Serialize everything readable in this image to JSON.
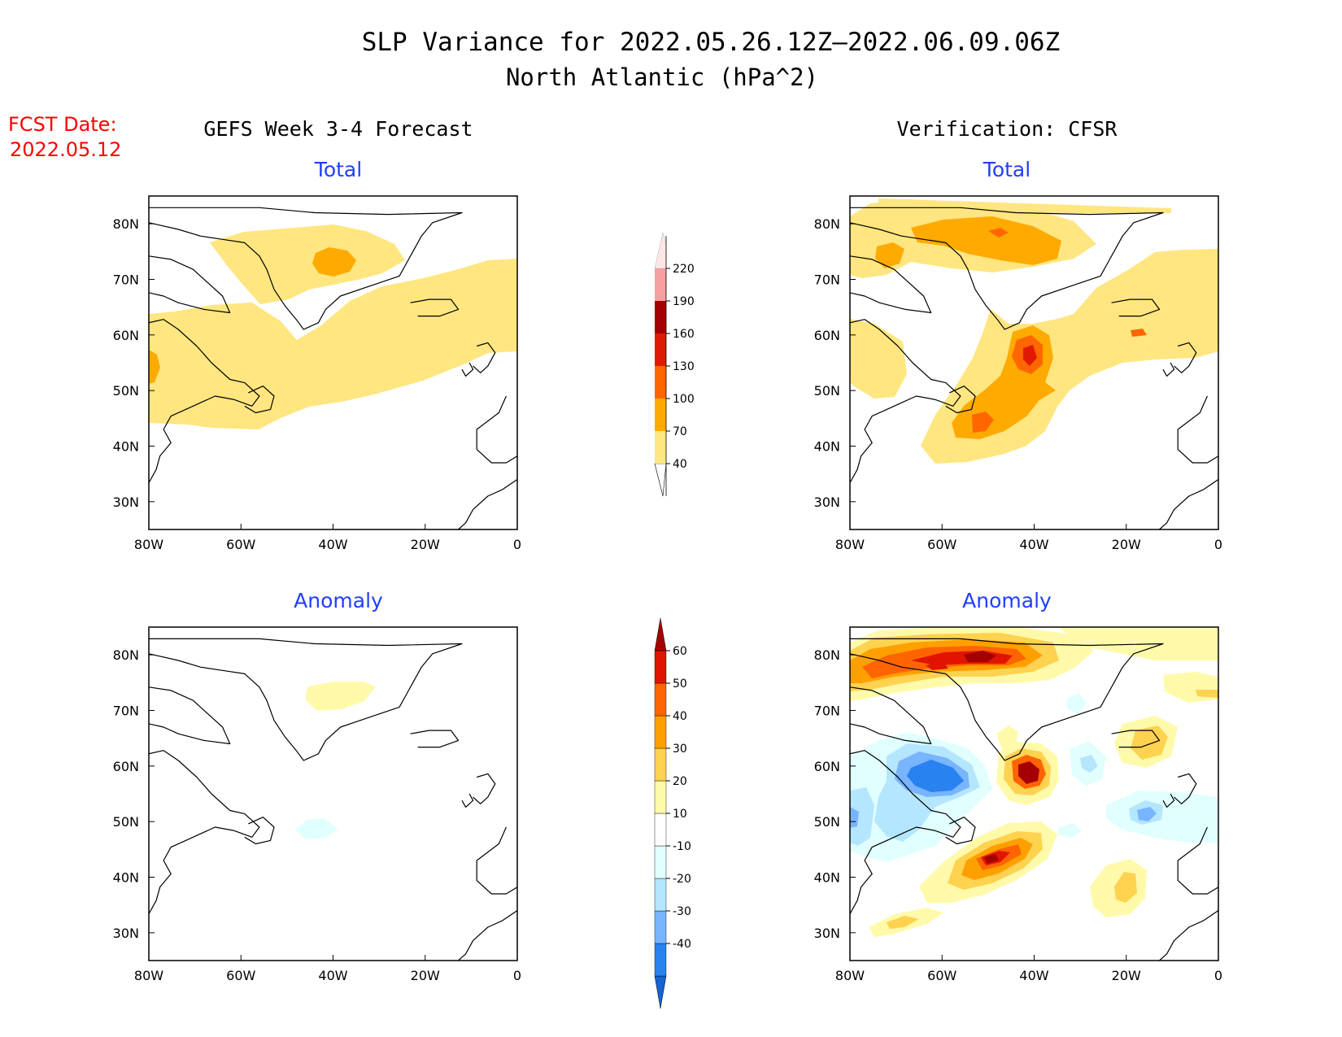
{
  "title": {
    "line1": "SLP Variance for 2022.05.26.12Z–2022.06.09.06Z",
    "line2": "North Atlantic (hPa^2)"
  },
  "fcst": {
    "label": "FCST Date:",
    "date": "2022.05.12"
  },
  "columns": {
    "left": "GEFS Week 3-4 Forecast",
    "right": "Verification: CFSR"
  },
  "panel_titles": {
    "total": "Total",
    "anomaly": "Anomaly"
  },
  "axes": {
    "lat_ticks": [
      "30N",
      "40N",
      "50N",
      "60N",
      "70N",
      "80N"
    ],
    "lat_values": [
      30,
      40,
      50,
      60,
      70,
      80
    ],
    "lon_ticks": [
      "80W",
      "60W",
      "40W",
      "20W",
      "0"
    ],
    "lon_values": [
      -80,
      -60,
      -40,
      -20,
      0
    ],
    "lon_range": [
      -80,
      0
    ],
    "lat_range": [
      25,
      85
    ]
  },
  "colorbars": {
    "total": {
      "labels": [
        "40",
        "70",
        "100",
        "130",
        "160",
        "190",
        "220"
      ],
      "colors": [
        "#ffe680",
        "#ffaa00",
        "#ff6600",
        "#e01a00",
        "#a50000",
        "#f4a0a0",
        "#ffe6e6"
      ]
    },
    "anomaly": {
      "labels": [
        "-40",
        "-30",
        "-20",
        "-10",
        "10",
        "20",
        "30",
        "40",
        "50",
        "60"
      ],
      "colors": [
        "#1464d2",
        "#2882f0",
        "#78b4ff",
        "#b4e6ff",
        "#e1ffff",
        "#ffffff",
        "#fffaaa",
        "#ffd250",
        "#ffa000",
        "#ff6400",
        "#e11400",
        "#a50000"
      ]
    }
  },
  "colors": {
    "title": "#000000",
    "panel_title": "#1f3fff",
    "fcst": "#ff0000",
    "coast": "#000000"
  },
  "chart_data": [
    {
      "type": "heatmap",
      "panel": "GEFS Week 3-4 Forecast — Total",
      "units": "hPa^2",
      "features": [
        {
          "level": "40-70",
          "shape": "broad band from Labrador across 55N to 0E, plus Greenland interior"
        },
        {
          "level": "70-100",
          "center": [
            -41,
            73
          ]
        },
        {
          "level": "70-100",
          "center": [
            -79,
            54
          ]
        }
      ]
    },
    {
      "type": "heatmap",
      "panel": "Verification: CFSR — Total",
      "units": "hPa^2",
      "features": [
        {
          "level": "40-70",
          "shape": "northern Greenland and Baffin, central Atlantic 40-65N, eastern North Atlantic 55-70N"
        },
        {
          "level": "70-100",
          "center": [
            -47,
            77
          ]
        },
        {
          "level": "70-100",
          "center": [
            -40,
            55
          ]
        },
        {
          "level": "70-100",
          "center": [
            -43,
            45
          ]
        },
        {
          "level": "100-130",
          "center": [
            -40,
            56
          ]
        },
        {
          "level": "100-130",
          "center": [
            -47,
            42
          ]
        }
      ]
    },
    {
      "type": "heatmap",
      "panel": "GEFS Week 3-4 Forecast — Anomaly",
      "units": "hPa^2",
      "features": [
        {
          "level": "10-20",
          "center": [
            -38,
            73
          ]
        },
        {
          "level": "-20--10",
          "center": [
            -45,
            49
          ]
        }
      ]
    },
    {
      "type": "heatmap",
      "panel": "Verification: CFSR — Anomaly",
      "units": "hPa^2",
      "features": [
        {
          "level": ">50",
          "center": [
            -50,
            79
          ]
        },
        {
          "level": "40-50",
          "center": [
            -70,
            77
          ]
        },
        {
          "level": ">50",
          "center": [
            -42,
            56
          ]
        },
        {
          "level": ">50",
          "center": [
            -47,
            43
          ]
        },
        {
          "level": "20-30",
          "center": [
            -20,
            41
          ]
        },
        {
          "level": "20-30",
          "center": [
            -16,
            65
          ]
        },
        {
          "level": "-40--30",
          "center": [
            -56,
            57
          ]
        },
        {
          "level": "-30--20",
          "center": [
            -80,
            50
          ]
        },
        {
          "level": "-30--20",
          "center": [
            -16,
            52
          ]
        },
        {
          "level": "-20--10",
          "center": [
            -29,
            64
          ]
        }
      ]
    }
  ]
}
